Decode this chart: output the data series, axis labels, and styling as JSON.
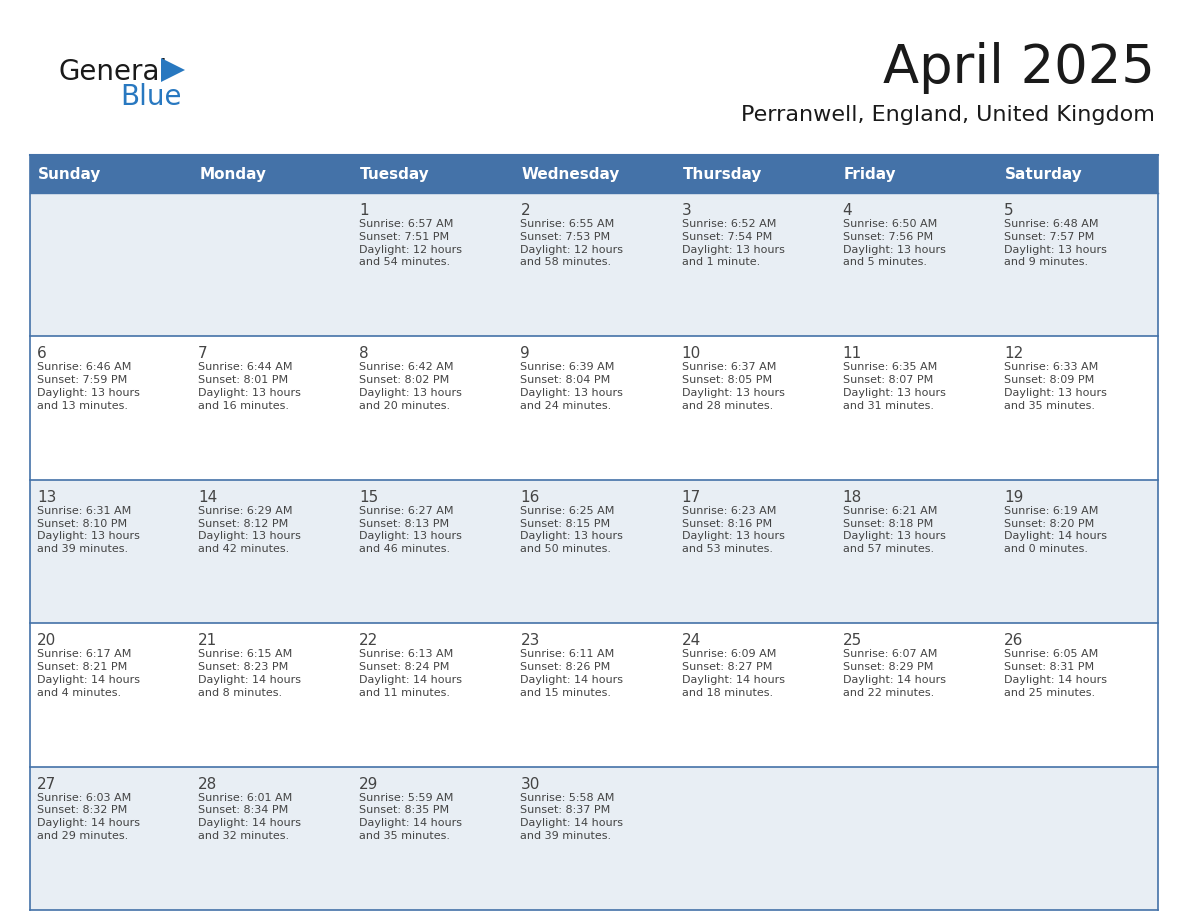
{
  "title": "April 2025",
  "subtitle": "Perranwell, England, United Kingdom",
  "days_of_week": [
    "Sunday",
    "Monday",
    "Tuesday",
    "Wednesday",
    "Thursday",
    "Friday",
    "Saturday"
  ],
  "header_bg": "#4472a8",
  "header_text": "#ffffff",
  "row_bg_light": "#e8eef4",
  "row_bg_white": "#ffffff",
  "border_color": "#4472a8",
  "text_color": "#333333",
  "cell_text_color": "#444444",
  "calendar_data": [
    [
      "",
      "",
      "1\nSunrise: 6:57 AM\nSunset: 7:51 PM\nDaylight: 12 hours\nand 54 minutes.",
      "2\nSunrise: 6:55 AM\nSunset: 7:53 PM\nDaylight: 12 hours\nand 58 minutes.",
      "3\nSunrise: 6:52 AM\nSunset: 7:54 PM\nDaylight: 13 hours\nand 1 minute.",
      "4\nSunrise: 6:50 AM\nSunset: 7:56 PM\nDaylight: 13 hours\nand 5 minutes.",
      "5\nSunrise: 6:48 AM\nSunset: 7:57 PM\nDaylight: 13 hours\nand 9 minutes."
    ],
    [
      "6\nSunrise: 6:46 AM\nSunset: 7:59 PM\nDaylight: 13 hours\nand 13 minutes.",
      "7\nSunrise: 6:44 AM\nSunset: 8:01 PM\nDaylight: 13 hours\nand 16 minutes.",
      "8\nSunrise: 6:42 AM\nSunset: 8:02 PM\nDaylight: 13 hours\nand 20 minutes.",
      "9\nSunrise: 6:39 AM\nSunset: 8:04 PM\nDaylight: 13 hours\nand 24 minutes.",
      "10\nSunrise: 6:37 AM\nSunset: 8:05 PM\nDaylight: 13 hours\nand 28 minutes.",
      "11\nSunrise: 6:35 AM\nSunset: 8:07 PM\nDaylight: 13 hours\nand 31 minutes.",
      "12\nSunrise: 6:33 AM\nSunset: 8:09 PM\nDaylight: 13 hours\nand 35 minutes."
    ],
    [
      "13\nSunrise: 6:31 AM\nSunset: 8:10 PM\nDaylight: 13 hours\nand 39 minutes.",
      "14\nSunrise: 6:29 AM\nSunset: 8:12 PM\nDaylight: 13 hours\nand 42 minutes.",
      "15\nSunrise: 6:27 AM\nSunset: 8:13 PM\nDaylight: 13 hours\nand 46 minutes.",
      "16\nSunrise: 6:25 AM\nSunset: 8:15 PM\nDaylight: 13 hours\nand 50 minutes.",
      "17\nSunrise: 6:23 AM\nSunset: 8:16 PM\nDaylight: 13 hours\nand 53 minutes.",
      "18\nSunrise: 6:21 AM\nSunset: 8:18 PM\nDaylight: 13 hours\nand 57 minutes.",
      "19\nSunrise: 6:19 AM\nSunset: 8:20 PM\nDaylight: 14 hours\nand 0 minutes."
    ],
    [
      "20\nSunrise: 6:17 AM\nSunset: 8:21 PM\nDaylight: 14 hours\nand 4 minutes.",
      "21\nSunrise: 6:15 AM\nSunset: 8:23 PM\nDaylight: 14 hours\nand 8 minutes.",
      "22\nSunrise: 6:13 AM\nSunset: 8:24 PM\nDaylight: 14 hours\nand 11 minutes.",
      "23\nSunrise: 6:11 AM\nSunset: 8:26 PM\nDaylight: 14 hours\nand 15 minutes.",
      "24\nSunrise: 6:09 AM\nSunset: 8:27 PM\nDaylight: 14 hours\nand 18 minutes.",
      "25\nSunrise: 6:07 AM\nSunset: 8:29 PM\nDaylight: 14 hours\nand 22 minutes.",
      "26\nSunrise: 6:05 AM\nSunset: 8:31 PM\nDaylight: 14 hours\nand 25 minutes."
    ],
    [
      "27\nSunrise: 6:03 AM\nSunset: 8:32 PM\nDaylight: 14 hours\nand 29 minutes.",
      "28\nSunrise: 6:01 AM\nSunset: 8:34 PM\nDaylight: 14 hours\nand 32 minutes.",
      "29\nSunrise: 5:59 AM\nSunset: 8:35 PM\nDaylight: 14 hours\nand 35 minutes.",
      "30\nSunrise: 5:58 AM\nSunset: 8:37 PM\nDaylight: 14 hours\nand 39 minutes.",
      "",
      "",
      ""
    ]
  ],
  "logo_color1": "#1a1a1a",
  "logo_color2": "#2878c0",
  "logo_triangle_color": "#2878c0",
  "title_color": "#1a1a1a",
  "subtitle_color": "#1a1a1a"
}
